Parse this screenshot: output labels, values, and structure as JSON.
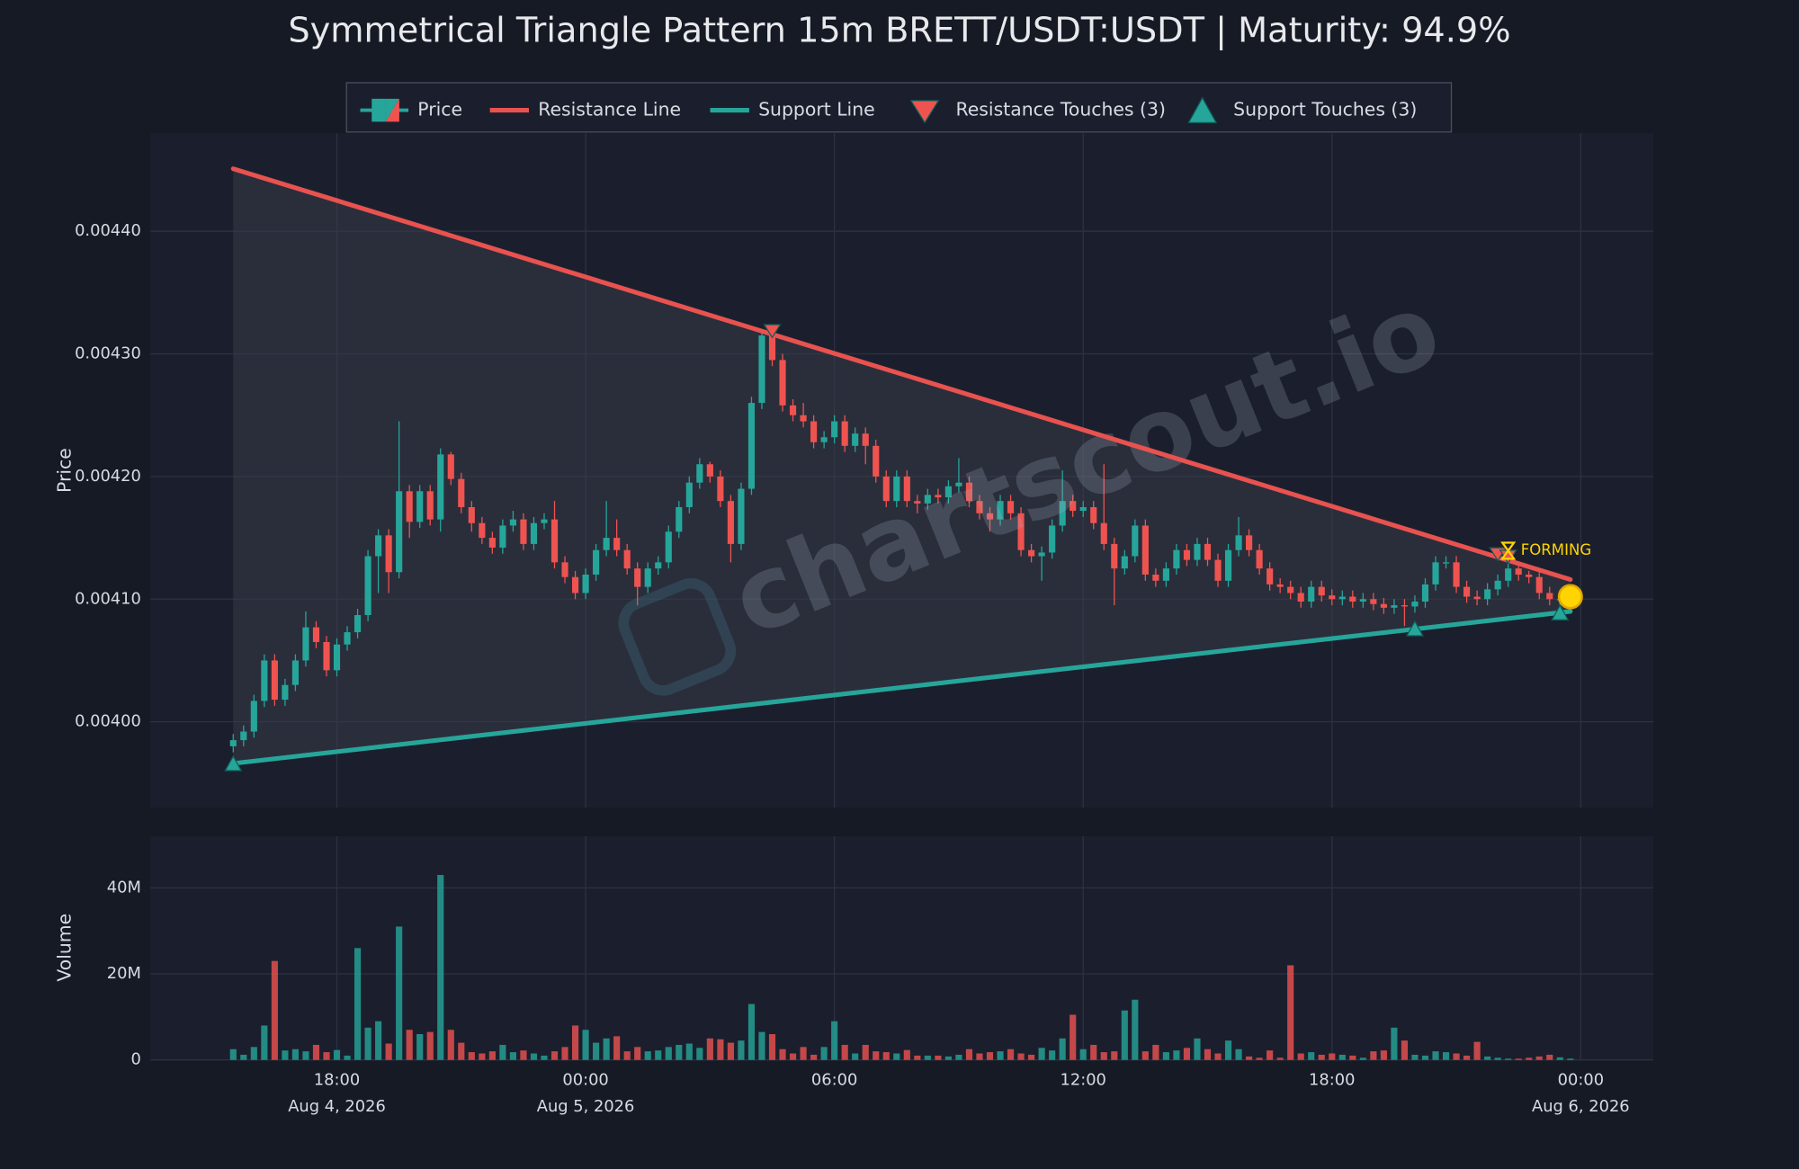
{
  "chart_data": {
    "type": "candlestick",
    "title": "Symmetrical Triangle Pattern 15m BRETT/USDT:USDT | Maturity: 94.9%",
    "series_name": "Price",
    "ylabel": "Price",
    "volume_ylabel": "Volume",
    "up_color": "#26a69a",
    "down_color": "#ef5350",
    "grid": true,
    "watermark": "chartscout.io",
    "xlim": [
      "2026-08-04 13:30",
      "2026-08-06 01:45"
    ],
    "xticks": [
      {
        "value": "2026-08-04 18:00",
        "label": "18:00",
        "date": "Aug 4, 2026"
      },
      {
        "value": "2026-08-05 00:00",
        "label": "00:00",
        "date": "Aug 5, 2026"
      },
      {
        "value": "2026-08-05 06:00",
        "label": "06:00"
      },
      {
        "value": "2026-08-05 12:00",
        "label": "12:00"
      },
      {
        "value": "2026-08-05 18:00",
        "label": "18:00"
      },
      {
        "value": "2026-08-06 00:00",
        "label": "00:00",
        "date": "Aug 6, 2026"
      }
    ],
    "ylim": [
      0.00393,
      0.00448
    ],
    "yticks": [
      {
        "value": 0.004,
        "label": "0.00400"
      },
      {
        "value": 0.0041,
        "label": "0.00410"
      },
      {
        "value": 0.0042,
        "label": "0.00420"
      },
      {
        "value": 0.0043,
        "label": "0.00430"
      },
      {
        "value": 0.0044,
        "label": "0.00440"
      }
    ],
    "volume_ylim": [
      0,
      52000000
    ],
    "volume_yticks": [
      0,
      {
        "value": 20000000,
        "label": "20M"
      },
      {
        "value": 40000000,
        "label": "40M"
      }
    ],
    "x": [
      "2026-08-04 15:30",
      "2026-08-04 15:45",
      "2026-08-04 16:00",
      "2026-08-04 16:15",
      "2026-08-04 16:30",
      "2026-08-04 16:45",
      "2026-08-04 17:00",
      "2026-08-04 17:15",
      "2026-08-04 17:30",
      "2026-08-04 17:45",
      "2026-08-04 18:00",
      "2026-08-04 18:15",
      "2026-08-04 18:30",
      "2026-08-04 18:45",
      "2026-08-04 19:00",
      "2026-08-04 19:15",
      "2026-08-04 19:30",
      "2026-08-04 19:45",
      "2026-08-04 20:00",
      "2026-08-04 20:15",
      "2026-08-04 20:30",
      "2026-08-04 20:45",
      "2026-08-04 21:00",
      "2026-08-04 21:15",
      "2026-08-04 21:30",
      "2026-08-04 21:45",
      "2026-08-04 22:00",
      "2026-08-04 22:15",
      "2026-08-04 22:30",
      "2026-08-04 22:45",
      "2026-08-04 23:00",
      "2026-08-04 23:15",
      "2026-08-04 23:30",
      "2026-08-04 23:45",
      "2026-08-05 00:00",
      "2026-08-05 00:15",
      "2026-08-05 00:30",
      "2026-08-05 00:45",
      "2026-08-05 01:00",
      "2026-08-05 01:15",
      "2026-08-05 01:30",
      "2026-08-05 01:45",
      "2026-08-05 02:00",
      "2026-08-05 02:15",
      "2026-08-05 02:30",
      "2026-08-05 02:45",
      "2026-08-05 03:00",
      "2026-08-05 03:15",
      "2026-08-05 03:30",
      "2026-08-05 03:45",
      "2026-08-05 04:00",
      "2026-08-05 04:15",
      "2026-08-05 04:30",
      "2026-08-05 04:45",
      "2026-08-05 05:00",
      "2026-08-05 05:15",
      "2026-08-05 05:30",
      "2026-08-05 05:45",
      "2026-08-05 06:00",
      "2026-08-05 06:15",
      "2026-08-05 06:30",
      "2026-08-05 06:45",
      "2026-08-05 07:00",
      "2026-08-05 07:15",
      "2026-08-05 07:30",
      "2026-08-05 07:45",
      "2026-08-05 08:00",
      "2026-08-05 08:15",
      "2026-08-05 08:30",
      "2026-08-05 08:45",
      "2026-08-05 09:00",
      "2026-08-05 09:15",
      "2026-08-05 09:30",
      "2026-08-05 09:45",
      "2026-08-05 10:00",
      "2026-08-05 10:15",
      "2026-08-05 10:30",
      "2026-08-05 10:45",
      "2026-08-05 11:00",
      "2026-08-05 11:15",
      "2026-08-05 11:30",
      "2026-08-05 11:45",
      "2026-08-05 12:00",
      "2026-08-05 12:15",
      "2026-08-05 12:30",
      "2026-08-05 12:45",
      "2026-08-05 13:00",
      "2026-08-05 13:15",
      "2026-08-05 13:30",
      "2026-08-05 13:45",
      "2026-08-05 14:00",
      "2026-08-05 14:15",
      "2026-08-05 14:30",
      "2026-08-05 14:45",
      "2026-08-05 15:00",
      "2026-08-05 15:15",
      "2026-08-05 15:30",
      "2026-08-05 15:45",
      "2026-08-05 16:00",
      "2026-08-05 16:15",
      "2026-08-05 16:30",
      "2026-08-05 16:45",
      "2026-08-05 17:00",
      "2026-08-05 17:15",
      "2026-08-05 17:30",
      "2026-08-05 17:45",
      "2026-08-05 18:00",
      "2026-08-05 18:15",
      "2026-08-05 18:30",
      "2026-08-05 18:45",
      "2026-08-05 19:00",
      "2026-08-05 19:15",
      "2026-08-05 19:30",
      "2026-08-05 19:45",
      "2026-08-05 20:00",
      "2026-08-05 20:15",
      "2026-08-05 20:30",
      "2026-08-05 20:45",
      "2026-08-05 21:00",
      "2026-08-05 21:15",
      "2026-08-05 21:30",
      "2026-08-05 21:45",
      "2026-08-05 22:00",
      "2026-08-05 22:15",
      "2026-08-05 22:30",
      "2026-08-05 22:45",
      "2026-08-05 23:00",
      "2026-08-05 23:15",
      "2026-08-05 23:30",
      "2026-08-05 23:45"
    ],
    "open": [
      0.00398,
      0.003985,
      0.003992,
      0.004017,
      0.00405,
      0.004018,
      0.00403,
      0.00405,
      0.004077,
      0.004065,
      0.004042,
      0.004063,
      0.004073,
      0.004087,
      0.004135,
      0.004152,
      0.004122,
      0.004188,
      0.004163,
      0.004188,
      0.004165,
      0.004218,
      0.004198,
      0.004175,
      0.004162,
      0.00415,
      0.004142,
      0.00416,
      0.004165,
      0.004145,
      0.004162,
      0.004165,
      0.00413,
      0.004118,
      0.004105,
      0.00412,
      0.00414,
      0.00415,
      0.00414,
      0.004125,
      0.00411,
      0.004125,
      0.00413,
      0.004155,
      0.004175,
      0.004195,
      0.00421,
      0.0042,
      0.00418,
      0.004145,
      0.00419,
      0.00426,
      0.004315,
      0.004295,
      0.004258,
      0.00425,
      0.004245,
      0.004228,
      0.004232,
      0.004245,
      0.004225,
      0.004235,
      0.004225,
      0.0042,
      0.00418,
      0.0042,
      0.00418,
      0.004178,
      0.004185,
      0.004183,
      0.004192,
      0.004195,
      0.00418,
      0.00417,
      0.004165,
      0.00418,
      0.00417,
      0.00414,
      0.004135,
      0.004138,
      0.00416,
      0.00418,
      0.004172,
      0.004175,
      0.004162,
      0.004145,
      0.004125,
      0.004135,
      0.00416,
      0.00412,
      0.004115,
      0.004125,
      0.00414,
      0.004132,
      0.004145,
      0.004132,
      0.004115,
      0.00414,
      0.004152,
      0.00414,
      0.004125,
      0.004112,
      0.00411,
      0.004105,
      0.004098,
      0.00411,
      0.004103,
      0.0041,
      0.004102,
      0.004098,
      0.0041,
      0.004096,
      0.004093,
      0.004095,
      0.004094,
      0.004098,
      0.004112,
      0.00413,
      0.00413,
      0.00411,
      0.004102,
      0.0041,
      0.004108,
      0.004115,
      0.004125,
      0.00412,
      0.004118,
      0.004105,
      0.0041,
      0.0041
    ],
    "high": [
      0.00399,
      0.003997,
      0.004022,
      0.004055,
      0.004055,
      0.004035,
      0.004055,
      0.00409,
      0.004082,
      0.00407,
      0.004068,
      0.004078,
      0.004092,
      0.00414,
      0.004157,
      0.004157,
      0.004245,
      0.004193,
      0.004193,
      0.004193,
      0.004223,
      0.00422,
      0.004203,
      0.00418,
      0.004167,
      0.004155,
      0.004165,
      0.004172,
      0.00417,
      0.004167,
      0.00417,
      0.00418,
      0.004135,
      0.004123,
      0.004125,
      0.004145,
      0.00418,
      0.004165,
      0.004145,
      0.00413,
      0.00413,
      0.004135,
      0.00416,
      0.00418,
      0.0042,
      0.004215,
      0.004212,
      0.004205,
      0.004185,
      0.004195,
      0.004265,
      0.00432,
      0.004318,
      0.0043,
      0.004263,
      0.00426,
      0.00425,
      0.004237,
      0.00425,
      0.00425,
      0.00424,
      0.00424,
      0.00423,
      0.004205,
      0.004205,
      0.004205,
      0.004185,
      0.00419,
      0.00419,
      0.004197,
      0.004215,
      0.0042,
      0.004185,
      0.004175,
      0.004185,
      0.004185,
      0.004175,
      0.004145,
      0.004143,
      0.004165,
      0.004205,
      0.004185,
      0.00418,
      0.00418,
      0.00421,
      0.00415,
      0.00414,
      0.004165,
      0.004165,
      0.004125,
      0.00413,
      0.004145,
      0.004145,
      0.00415,
      0.00415,
      0.004137,
      0.004145,
      0.004167,
      0.004157,
      0.004145,
      0.00413,
      0.004117,
      0.004115,
      0.00411,
      0.004115,
      0.004115,
      0.004108,
      0.004107,
      0.004107,
      0.004105,
      0.004105,
      0.004101,
      0.0041,
      0.0041,
      0.004103,
      0.004117,
      0.004135,
      0.004135,
      0.004135,
      0.004115,
      0.004107,
      0.004113,
      0.00412,
      0.00413,
      0.004127,
      0.004123,
      0.004123,
      0.00411,
      0.004105,
      0.004107
    ],
    "low": [
      0.003975,
      0.00398,
      0.003987,
      0.004012,
      0.004013,
      0.004013,
      0.004025,
      0.004045,
      0.00406,
      0.004037,
      0.004037,
      0.004058,
      0.004068,
      0.004082,
      0.004105,
      0.004105,
      0.004117,
      0.00415,
      0.004158,
      0.00416,
      0.004155,
      0.004193,
      0.00417,
      0.004155,
      0.004145,
      0.004137,
      0.004137,
      0.004155,
      0.00414,
      0.00414,
      0.004157,
      0.004125,
      0.004113,
      0.0041,
      0.0041,
      0.004115,
      0.004135,
      0.004135,
      0.00412,
      0.004095,
      0.004105,
      0.00412,
      0.004125,
      0.00415,
      0.00417,
      0.00419,
      0.004195,
      0.004175,
      0.00413,
      0.00414,
      0.004185,
      0.004255,
      0.00429,
      0.004253,
      0.004245,
      0.00424,
      0.004223,
      0.004223,
      0.004227,
      0.00422,
      0.00422,
      0.00421,
      0.004195,
      0.004175,
      0.004175,
      0.004175,
      0.00417,
      0.004173,
      0.004178,
      0.004178,
      0.004187,
      0.004175,
      0.004165,
      0.004155,
      0.00416,
      0.004165,
      0.004135,
      0.00413,
      0.004115,
      0.004133,
      0.004155,
      0.004167,
      0.004167,
      0.004157,
      0.00414,
      0.004095,
      0.00412,
      0.00413,
      0.004115,
      0.00411,
      0.00411,
      0.00412,
      0.004127,
      0.004127,
      0.004127,
      0.00411,
      0.00411,
      0.004135,
      0.004135,
      0.00412,
      0.004107,
      0.004105,
      0.0041,
      0.004093,
      0.004093,
      0.004098,
      0.004095,
      0.004095,
      0.004093,
      0.004093,
      0.004091,
      0.004088,
      0.004088,
      0.004078,
      0.004089,
      0.004093,
      0.004107,
      0.004125,
      0.004105,
      0.004097,
      0.004095,
      0.004095,
      0.004103,
      0.00411,
      0.004115,
      0.004113,
      0.0041,
      0.004095,
      0.004095,
      0.004097
    ],
    "close": [
      0.003985,
      0.003992,
      0.004017,
      0.00405,
      0.004018,
      0.00403,
      0.00405,
      0.004077,
      0.004065,
      0.004042,
      0.004063,
      0.004073,
      0.004087,
      0.004135,
      0.004152,
      0.004122,
      0.004188,
      0.004163,
      0.004188,
      0.004165,
      0.004218,
      0.004198,
      0.004175,
      0.004162,
      0.00415,
      0.004142,
      0.00416,
      0.004165,
      0.004145,
      0.004162,
      0.004165,
      0.00413,
      0.004118,
      0.004105,
      0.00412,
      0.00414,
      0.00415,
      0.00414,
      0.004125,
      0.00411,
      0.004125,
      0.00413,
      0.004155,
      0.004175,
      0.004195,
      0.00421,
      0.0042,
      0.00418,
      0.004145,
      0.00419,
      0.00426,
      0.004315,
      0.004295,
      0.004258,
      0.00425,
      0.004245,
      0.004228,
      0.004232,
      0.004245,
      0.004225,
      0.004235,
      0.004225,
      0.0042,
      0.00418,
      0.0042,
      0.00418,
      0.004178,
      0.004185,
      0.004183,
      0.004192,
      0.004195,
      0.00418,
      0.00417,
      0.004165,
      0.00418,
      0.00417,
      0.00414,
      0.004135,
      0.004138,
      0.00416,
      0.00418,
      0.004172,
      0.004175,
      0.004162,
      0.004145,
      0.004125,
      0.004135,
      0.00416,
      0.00412,
      0.004115,
      0.004125,
      0.00414,
      0.004132,
      0.004145,
      0.004132,
      0.004115,
      0.00414,
      0.004152,
      0.00414,
      0.004125,
      0.004112,
      0.00411,
      0.004105,
      0.004098,
      0.00411,
      0.004103,
      0.0041,
      0.004102,
      0.004098,
      0.0041,
      0.004096,
      0.004093,
      0.004095,
      0.004094,
      0.004098,
      0.004112,
      0.00413,
      0.00413,
      0.00411,
      0.004102,
      0.0041,
      0.004108,
      0.004115,
      0.004125,
      0.00412,
      0.004118,
      0.004105,
      0.0041,
      0.0041,
      0.004102
    ],
    "volume": [
      2500000,
      1200000,
      3000000,
      8000000,
      23000000,
      2200000,
      2500000,
      2000000,
      3500000,
      1800000,
      2300000,
      1000000,
      26000000,
      7500000,
      9000000,
      3800000,
      31000000,
      7000000,
      6000000,
      6500000,
      43000000,
      7000000,
      4000000,
      1800000,
      1500000,
      2000000,
      3500000,
      1800000,
      2200000,
      1500000,
      1000000,
      2000000,
      3000000,
      8000000,
      7000000,
      4000000,
      5000000,
      5500000,
      2000000,
      3000000,
      2000000,
      2200000,
      3000000,
      3500000,
      3800000,
      2800000,
      5000000,
      4800000,
      4000000,
      4500000,
      13000000,
      6500000,
      6000000,
      2500000,
      1500000,
      3000000,
      1200000,
      3000000,
      9000000,
      3500000,
      1500000,
      3500000,
      2000000,
      1800000,
      1500000,
      2300000,
      1000000,
      1000000,
      1000000,
      800000,
      1200000,
      2500000,
      1500000,
      1800000,
      2000000,
      2500000,
      1500000,
      1200000,
      2800000,
      2200000,
      5000000,
      10500000,
      2500000,
      3500000,
      1800000,
      2000000,
      11500000,
      14000000,
      2000000,
      3500000,
      1800000,
      2200000,
      2800000,
      5000000,
      2500000,
      1500000,
      4500000,
      2500000,
      800000,
      500000,
      2200000,
      500000,
      22000000,
      1500000,
      1800000,
      1200000,
      1500000,
      1200000,
      1000000,
      500000,
      2000000,
      2200000,
      7500000,
      4500000,
      1200000,
      1000000,
      2000000,
      1800000,
      1500000,
      1000000,
      4200000,
      800000,
      500000,
      300000,
      300000,
      500000,
      800000,
      1200000,
      600000,
      300000
    ],
    "lines": [
      {
        "name": "Resistance Line",
        "color": "#e8524f",
        "x": [
          "2026-08-04 15:30",
          "2026-08-05 23:45"
        ],
        "values": [
          0.004451,
          0.004116
        ]
      },
      {
        "name": "Support Line",
        "color": "#26a69a",
        "x": [
          "2026-08-04 15:30",
          "2026-08-05 23:45"
        ],
        "values": [
          0.003966,
          0.00409
        ]
      }
    ],
    "touches": [
      {
        "name": "Resistance Touches (3)",
        "color": "#ef5350",
        "marker": "down",
        "x": [
          "2026-08-05 04:30",
          "2026-08-05 22:00",
          "2026-08-05 22:15"
        ],
        "values": [
          0.004316,
          0.004134,
          0.004132
        ]
      },
      {
        "name": "Support Touches (3)",
        "color": "#26a69a",
        "marker": "up",
        "x": [
          "2026-08-04 15:30",
          "2026-08-05 20:00",
          "2026-08-05 23:30"
        ],
        "values": [
          0.003966,
          0.004076,
          0.004089
        ]
      }
    ],
    "current": {
      "x": "2026-08-05 23:45",
      "value": 0.004102,
      "color": "#ffd400"
    },
    "annotation": {
      "text": "FORMING",
      "color": "#ffd400"
    }
  }
}
